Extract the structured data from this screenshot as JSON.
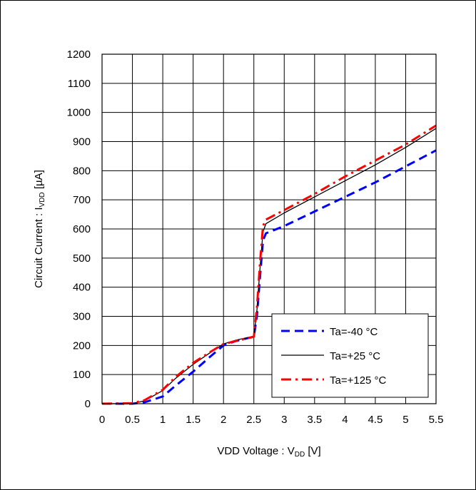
{
  "chart_data": {
    "type": "line",
    "xlabel": "VDD Voltage : V",
    "xlabel_sub": "DD",
    "xlabel_unit": " [V]",
    "ylabel": "Circuit Current : I",
    "ylabel_sub": "VDD",
    "ylabel_unit": " [µA]",
    "xlim": [
      0,
      5.5
    ],
    "ylim": [
      0,
      1200
    ],
    "xticks": [
      "0",
      "0.5",
      "1",
      "1.5",
      "2",
      "2.5",
      "3",
      "3.5",
      "4",
      "4.5",
      "5",
      "5.5"
    ],
    "yticks": [
      "0",
      "100",
      "200",
      "300",
      "400",
      "500",
      "600",
      "700",
      "800",
      "900",
      "1000",
      "1100",
      "1200"
    ],
    "grid": true,
    "legend_position": "bottom-right",
    "series": [
      {
        "name": "Ta=-40 °C",
        "color": "#0000ff",
        "style": "dashed",
        "points": [
          [
            0,
            0
          ],
          [
            0.5,
            0
          ],
          [
            0.7,
            5
          ],
          [
            1.0,
            25
          ],
          [
            1.2,
            60
          ],
          [
            1.5,
            110
          ],
          [
            1.8,
            165
          ],
          [
            2.0,
            200
          ],
          [
            2.2,
            215
          ],
          [
            2.5,
            230
          ],
          [
            2.55,
            300
          ],
          [
            2.6,
            430
          ],
          [
            2.65,
            560
          ],
          [
            2.7,
            585
          ],
          [
            3.0,
            610
          ],
          [
            3.5,
            660
          ],
          [
            4.0,
            710
          ],
          [
            4.5,
            760
          ],
          [
            5.0,
            815
          ],
          [
            5.5,
            870
          ]
        ]
      },
      {
        "name": "Ta=+25 °C",
        "color": "#000000",
        "style": "solid",
        "points": [
          [
            0,
            0
          ],
          [
            0.5,
            0
          ],
          [
            0.7,
            10
          ],
          [
            1.0,
            45
          ],
          [
            1.2,
            85
          ],
          [
            1.5,
            135
          ],
          [
            1.8,
            178
          ],
          [
            2.0,
            205
          ],
          [
            2.2,
            218
          ],
          [
            2.5,
            232
          ],
          [
            2.55,
            320
          ],
          [
            2.6,
            460
          ],
          [
            2.65,
            590
          ],
          [
            2.7,
            618
          ],
          [
            3.0,
            655
          ],
          [
            3.5,
            710
          ],
          [
            4.0,
            765
          ],
          [
            4.5,
            820
          ],
          [
            5.0,
            880
          ],
          [
            5.5,
            945
          ]
        ]
      },
      {
        "name": "Ta=+125 °C",
        "color": "#ff0000",
        "style": "dashdot",
        "points": [
          [
            0,
            0
          ],
          [
            0.5,
            2
          ],
          [
            0.7,
            12
          ],
          [
            1.0,
            48
          ],
          [
            1.2,
            90
          ],
          [
            1.5,
            140
          ],
          [
            1.8,
            180
          ],
          [
            2.0,
            205
          ],
          [
            2.2,
            215
          ],
          [
            2.5,
            230
          ],
          [
            2.55,
            330
          ],
          [
            2.6,
            480
          ],
          [
            2.65,
            610
          ],
          [
            2.7,
            632
          ],
          [
            3.0,
            665
          ],
          [
            3.5,
            720
          ],
          [
            4.0,
            780
          ],
          [
            4.5,
            835
          ],
          [
            5.0,
            890
          ],
          [
            5.5,
            955
          ]
        ]
      }
    ]
  }
}
